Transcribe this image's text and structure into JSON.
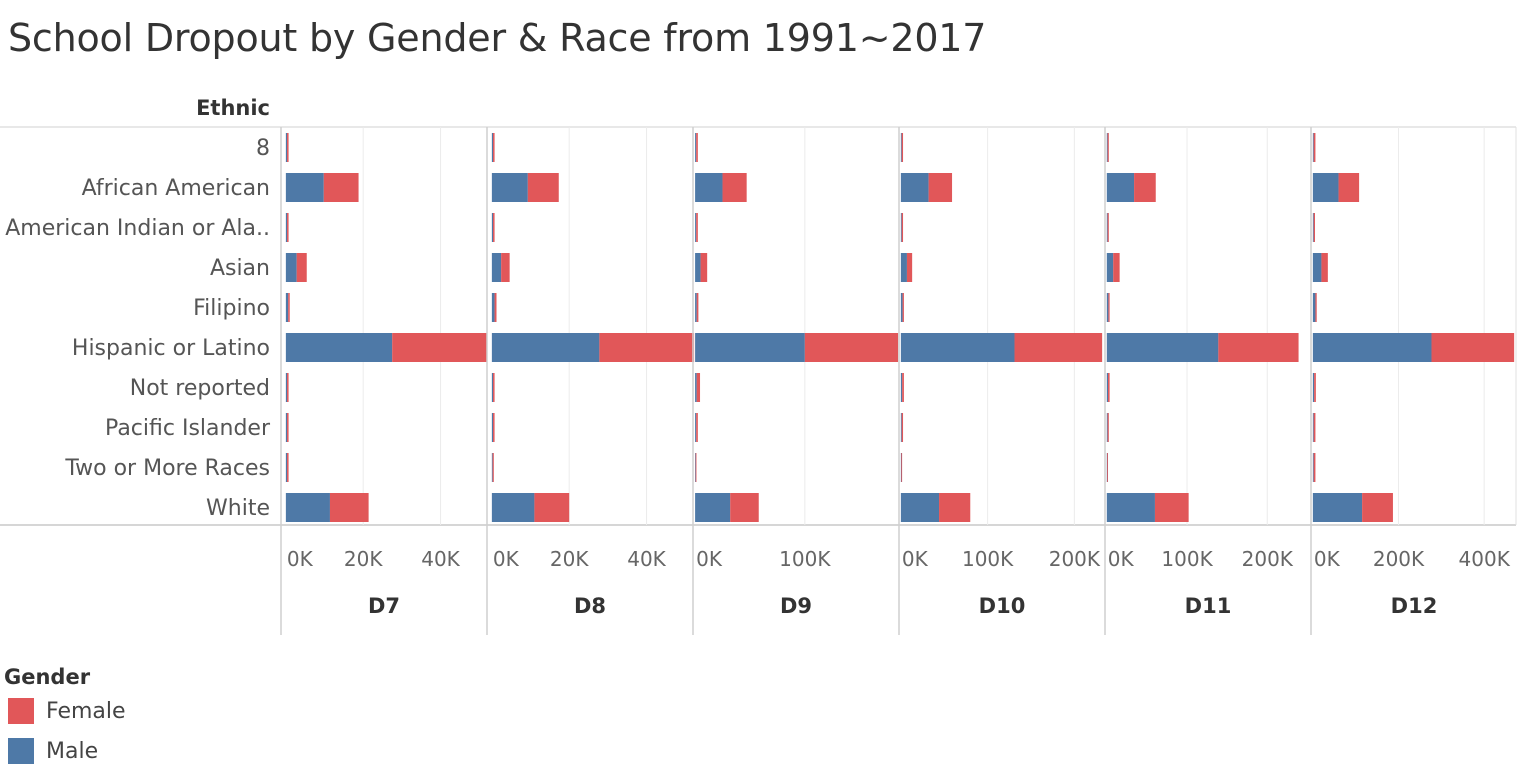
{
  "chart_data": {
    "type": "bar",
    "orientation": "horizontal",
    "stacked": true,
    "title": "School Dropout by Gender & Race from 1991~2017",
    "row_header": "Ethnic",
    "categories": [
      "8",
      "African American",
      "American Indian or Ala..",
      "Asian",
      "Filipino",
      "Hispanic or Latino",
      "Not reported",
      "Pacific Islander",
      "Two or More Races",
      "White"
    ],
    "legend": {
      "title": "Gender",
      "placement": "bottom-left",
      "items": [
        {
          "label": "Female",
          "color": "#e15759"
        },
        {
          "label": "Male",
          "color": "#4e79a7"
        }
      ]
    },
    "stack_order": [
      "Male",
      "Female"
    ],
    "panels": [
      {
        "name": "D7",
        "xlim": [
          -1000,
          51500
        ],
        "ticks": [
          0,
          20000,
          40000
        ],
        "tick_labels": [
          "0K",
          "20K",
          "40K"
        ],
        "series": {
          "Male": [
            300,
            9800,
            300,
            2800,
            600,
            27500,
            300,
            300,
            300,
            11400
          ],
          "Female": [
            400,
            9000,
            400,
            2600,
            400,
            24500,
            400,
            400,
            400,
            10000
          ]
        }
      },
      {
        "name": "D8",
        "xlim": [
          -1000,
          51500
        ],
        "ticks": [
          0,
          20000,
          40000
        ],
        "tick_labels": [
          "0K",
          "20K",
          "40K"
        ],
        "series": {
          "Male": [
            300,
            9300,
            300,
            2400,
            700,
            27800,
            300,
            300,
            200,
            11000
          ],
          "Female": [
            400,
            8000,
            400,
            2200,
            500,
            24500,
            400,
            400,
            300,
            9000
          ]
        }
      },
      {
        "name": "D9",
        "xlim": [
          -1000,
          184000
        ],
        "ticks": [
          0,
          100000
        ],
        "tick_labels": [
          "0K",
          "100K"
        ],
        "series": {
          "Male": [
            1000,
            25000,
            1000,
            5000,
            1500,
            100000,
            1500,
            1000,
            500,
            32000
          ],
          "Female": [
            1500,
            22000,
            1500,
            6000,
            1500,
            85000,
            3000,
            1500,
            500,
            26000
          ]
        }
      },
      {
        "name": "D10",
        "xlim": [
          -1000,
          233000
        ],
        "ticks": [
          0,
          100000,
          200000
        ],
        "tick_labels": [
          "0K",
          "100K",
          "200K"
        ],
        "series": {
          "Male": [
            1000,
            32000,
            1000,
            7000,
            2000,
            131000,
            1500,
            1000,
            500,
            44000
          ],
          "Female": [
            1500,
            27000,
            1500,
            6000,
            1500,
            101000,
            2000,
            1500,
            500,
            36000
          ]
        }
      },
      {
        "name": "D11",
        "xlim": [
          -1000,
          252000
        ],
        "ticks": [
          0,
          100000,
          200000
        ],
        "tick_labels": [
          "0K",
          "100K",
          "200K"
        ],
        "series": {
          "Male": [
            1000,
            34000,
            1000,
            8000,
            2000,
            139000,
            1500,
            1000,
            500,
            60000
          ],
          "Female": [
            1500,
            27000,
            1500,
            8000,
            1500,
            100000,
            2000,
            1500,
            500,
            42000
          ]
        }
      },
      {
        "name": "D12",
        "xlim": [
          -2000,
          472000
        ],
        "ticks": [
          0,
          200000,
          400000
        ],
        "tick_labels": [
          "0K",
          "200K",
          "400K"
        ],
        "series": {
          "Male": [
            2000,
            60000,
            2000,
            20000,
            6000,
            277000,
            3000,
            2000,
            2000,
            115000
          ],
          "Female": [
            4000,
            48000,
            3000,
            15000,
            3000,
            193000,
            4000,
            4000,
            4000,
            72000
          ]
        }
      }
    ]
  }
}
